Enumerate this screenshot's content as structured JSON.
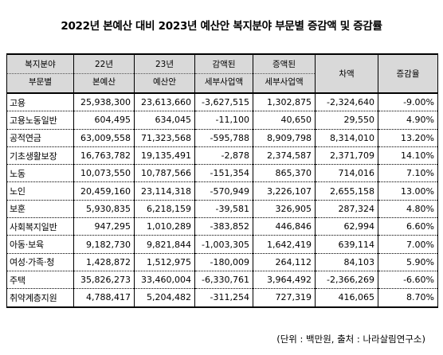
{
  "title": "2022년 본예산 대비 2023년 예산안 복지분야 부문별 증감액 및 증감률",
  "headers": [
    {
      "l1": "복지분야",
      "l2": "부문별"
    },
    {
      "l1": "22년",
      "l2": "본예산"
    },
    {
      "l1": "23년",
      "l2": "예산안"
    },
    {
      "l1": "감액된",
      "l2": "세부사업액"
    },
    {
      "l1": "증액된",
      "l2": "세부사업액"
    },
    {
      "l1": "차액",
      "l2": ""
    },
    {
      "l1": "증감율",
      "l2": ""
    }
  ],
  "rows": [
    [
      "고용",
      "25,938,300",
      "23,613,660",
      "-3,627,515",
      "1,302,875",
      "-2,324,640",
      "-9.00%"
    ],
    [
      "고용노동일반",
      "604,495",
      "634,045",
      "-11,100",
      "40,650",
      "29,550",
      "4.90%"
    ],
    [
      "공적연금",
      "63,009,558",
      "71,323,568",
      "-595,788",
      "8,909,798",
      "8,314,010",
      "13.20%"
    ],
    [
      "기초생활보장",
      "16,763,782",
      "19,135,491",
      "-2,878",
      "2,374,587",
      "2,371,709",
      "14.10%"
    ],
    [
      "노동",
      "10,073,550",
      "10,787,566",
      "-151,354",
      "865,370",
      "714,016",
      "7.10%"
    ],
    [
      "노인",
      "20,459,160",
      "23,114,318",
      "-570,949",
      "3,226,107",
      "2,655,158",
      "13.00%"
    ],
    [
      "보훈",
      "5,930,835",
      "6,218,159",
      "-39,581",
      "326,905",
      "287,324",
      "4.80%"
    ],
    [
      "사회복지일반",
      "947,295",
      "1,010,289",
      "-383,852",
      "446,846",
      "62,994",
      "6.60%"
    ],
    [
      "아동·보육",
      "9,182,730",
      "9,821,844",
      "-1,003,305",
      "1,642,419",
      "639,114",
      "7.00%"
    ],
    [
      "여성·가족·청",
      "1,428,872",
      "1,512,975",
      "-180,009",
      "264,112",
      "84,103",
      "5.90%"
    ],
    [
      "주택",
      "35,826,273",
      "33,460,004",
      "-6,330,761",
      "3,964,492",
      "-2,366,269",
      "-6.60%"
    ],
    [
      "취약계층지원",
      "4,788,417",
      "5,204,482",
      "-311,254",
      "727,319",
      "416,065",
      "8.70%"
    ]
  ],
  "note": "(단위 : 백만원, 출처 : 나라살림연구소)"
}
